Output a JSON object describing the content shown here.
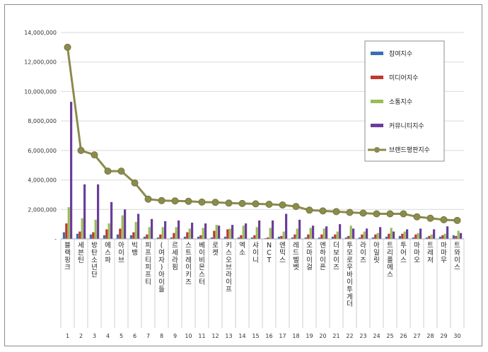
{
  "chart_data": {
    "type": "bar",
    "title": "",
    "xlabel": "",
    "ylabel": "",
    "ylim": [
      0,
      14000000
    ],
    "yticks": [
      0,
      2000000,
      4000000,
      6000000,
      8000000,
      10000000,
      12000000,
      14000000
    ],
    "ytick_labels": [
      "-",
      "2,000,000",
      "4,000,000",
      "6,000,000",
      "8,000,000",
      "10,000,000",
      "12,000,000",
      "14,000,000"
    ],
    "ranks": [
      "1",
      "2",
      "3",
      "4",
      "5",
      "6",
      "7",
      "8",
      "9",
      "10",
      "11",
      "12",
      "13",
      "14",
      "15",
      "16",
      "17",
      "18",
      "19",
      "20",
      "21",
      "22",
      "23",
      "24",
      "25",
      "26",
      "27",
      "28",
      "29",
      "30"
    ],
    "categories": [
      "블랙핑크",
      "세븐틴",
      "방탄소년단",
      "에스파",
      "아이브",
      "빅뱅",
      "피프티피프티",
      "(여자)아이들",
      "르세라핌",
      "스트레이키즈",
      "베이비몬스터",
      "로켓",
      "키스오브라이프",
      "엑소",
      "샤이니",
      "NCT",
      "엔믹스",
      "레드벨벳",
      "오마이걸",
      "엔하이픈",
      "더보이즈",
      "투모로우바이투게더",
      "라이즈",
      "아일릿",
      "트리플에스",
      "투어스",
      "마마오",
      "트레저",
      "마마무",
      "트와이스"
    ],
    "series": [
      {
        "name": "참여지수",
        "color": "#3a6fb4",
        "values": [
          450000,
          350000,
          300000,
          250000,
          300000,
          250000,
          150000,
          100000,
          100000,
          150000,
          150000,
          100000,
          150000,
          100000,
          100000,
          50000,
          150000,
          100000,
          100000,
          100000,
          150000,
          100000,
          100000,
          100000,
          150000,
          200000,
          100000,
          100000,
          150000,
          250000
        ]
      },
      {
        "name": "미디어지수",
        "color": "#c0392b",
        "values": [
          1050000,
          500000,
          450000,
          650000,
          700000,
          450000,
          300000,
          300000,
          400000,
          450000,
          250000,
          550000,
          650000,
          250000,
          250000,
          100000,
          200000,
          300000,
          300000,
          300000,
          300000,
          200000,
          300000,
          300000,
          350000,
          350000,
          300000,
          200000,
          250000,
          200000
        ]
      },
      {
        "name": "소통지수",
        "color": "#9bbb59",
        "values": [
          2150000,
          1400000,
          1300000,
          1050000,
          1600000,
          1150000,
          800000,
          800000,
          800000,
          700000,
          750000,
          950000,
          700000,
          900000,
          800000,
          750000,
          500000,
          700000,
          750000,
          700000,
          500000,
          900000,
          500000,
          400000,
          750000,
          500000,
          400000,
          300000,
          350000,
          550000
        ]
      },
      {
        "name": "커뮤니티지수",
        "color": "#6a3d9a",
        "values": [
          9300000,
          3700000,
          3700000,
          2500000,
          2000000,
          1700000,
          1350000,
          1200000,
          1250000,
          1100000,
          1050000,
          900000,
          950000,
          1050000,
          1250000,
          1250000,
          1700000,
          1300000,
          900000,
          850000,
          1000000,
          700000,
          700000,
          800000,
          500000,
          650000,
          700000,
          650000,
          850000,
          400000
        ]
      }
    ],
    "line_series": {
      "name": "브랜드평판지수",
      "color": "#8b8b4d",
      "values": [
        13000000,
        6000000,
        5700000,
        4600000,
        4600000,
        3800000,
        2700000,
        2600000,
        2580000,
        2550000,
        2500000,
        2480000,
        2430000,
        2400000,
        2380000,
        2350000,
        2300000,
        2200000,
        1950000,
        1900000,
        1850000,
        1800000,
        1750000,
        1700000,
        1700000,
        1700000,
        1500000,
        1400000,
        1300000,
        1250000
      ]
    },
    "legend_position": "top-right"
  }
}
